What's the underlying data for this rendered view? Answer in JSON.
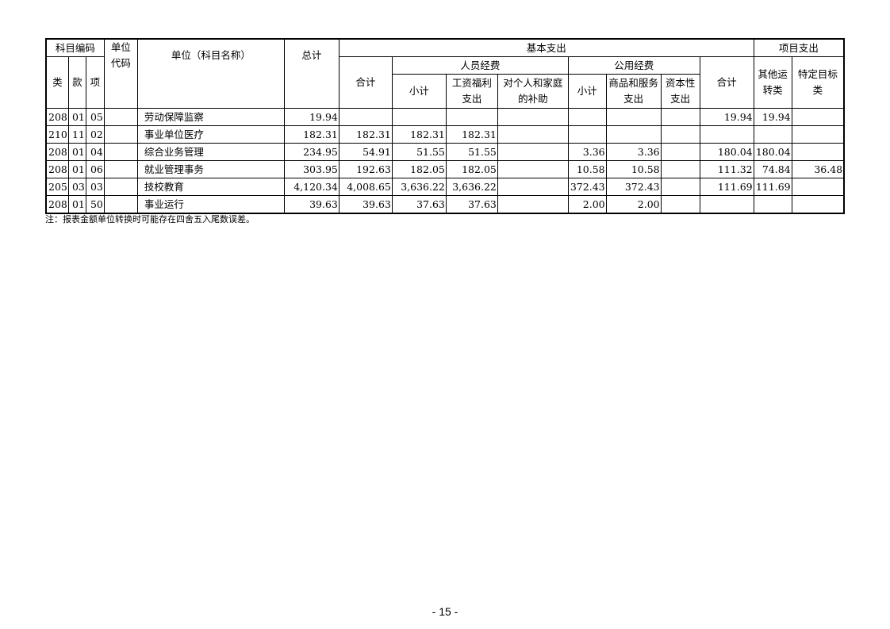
{
  "header": {
    "code_group": "科目编码",
    "lei": "类",
    "kuan": "款",
    "xiang": "项",
    "unit_code": "单位代码",
    "unit_name": "单位（科目名称）",
    "total": "总计",
    "basic": "基本支出",
    "basic_total": "合计",
    "personnel": "人员经费",
    "personnel_subtotal": "小计",
    "wages": "工资福利支出",
    "subsidies": "对个人和家庭的补助",
    "public": "公用经费",
    "public_subtotal": "小计",
    "goods": "商品和服务支出",
    "capital": "资本性支出",
    "project": "项目支出",
    "project_total": "合计",
    "other_transfer": "其他运转类",
    "specific": "特定目标类"
  },
  "rows": [
    {
      "lei": "208",
      "kuan": "01",
      "xiang": "05",
      "code": "",
      "name": "劳动保障监察",
      "total": "19.94",
      "basic_total": "",
      "p_sub": "",
      "wages": "",
      "subsidies": "",
      "g_sub": "",
      "goods": "",
      "capital": "",
      "proj_total": "19.94",
      "other": "19.94",
      "specific": ""
    },
    {
      "lei": "210",
      "kuan": "11",
      "xiang": "02",
      "code": "",
      "name": "事业单位医疗",
      "total": "182.31",
      "basic_total": "182.31",
      "p_sub": "182.31",
      "wages": "182.31",
      "subsidies": "",
      "g_sub": "",
      "goods": "",
      "capital": "",
      "proj_total": "",
      "other": "",
      "specific": ""
    },
    {
      "lei": "208",
      "kuan": "01",
      "xiang": "04",
      "code": "",
      "name": "综合业务管理",
      "total": "234.95",
      "basic_total": "54.91",
      "p_sub": "51.55",
      "wages": "51.55",
      "subsidies": "",
      "g_sub": "3.36",
      "goods": "3.36",
      "capital": "",
      "proj_total": "180.04",
      "other": "180.04",
      "specific": ""
    },
    {
      "lei": "208",
      "kuan": "01",
      "xiang": "06",
      "code": "",
      "name": "就业管理事务",
      "total": "303.95",
      "basic_total": "192.63",
      "p_sub": "182.05",
      "wages": "182.05",
      "subsidies": "",
      "g_sub": "10.58",
      "goods": "10.58",
      "capital": "",
      "proj_total": "111.32",
      "other": "74.84",
      "specific": "36.48"
    },
    {
      "lei": "205",
      "kuan": "03",
      "xiang": "03",
      "code": "",
      "name": "技校教育",
      "total": "4,120.34",
      "basic_total": "4,008.65",
      "p_sub": "3,636.22",
      "wages": "3,636.22",
      "subsidies": "",
      "g_sub": "372.43",
      "goods": "372.43",
      "capital": "",
      "proj_total": "111.69",
      "other": "111.69",
      "specific": ""
    },
    {
      "lei": "208",
      "kuan": "01",
      "xiang": "50",
      "code": "",
      "name": "事业运行",
      "total": "39.63",
      "basic_total": "39.63",
      "p_sub": "37.63",
      "wages": "37.63",
      "subsidies": "",
      "g_sub": "2.00",
      "goods": "2.00",
      "capital": "",
      "proj_total": "",
      "other": "",
      "specific": ""
    }
  ],
  "note": "注：报表金额单位转换时可能存在四舍五入尾数误差。",
  "page_number": "- 15 -"
}
